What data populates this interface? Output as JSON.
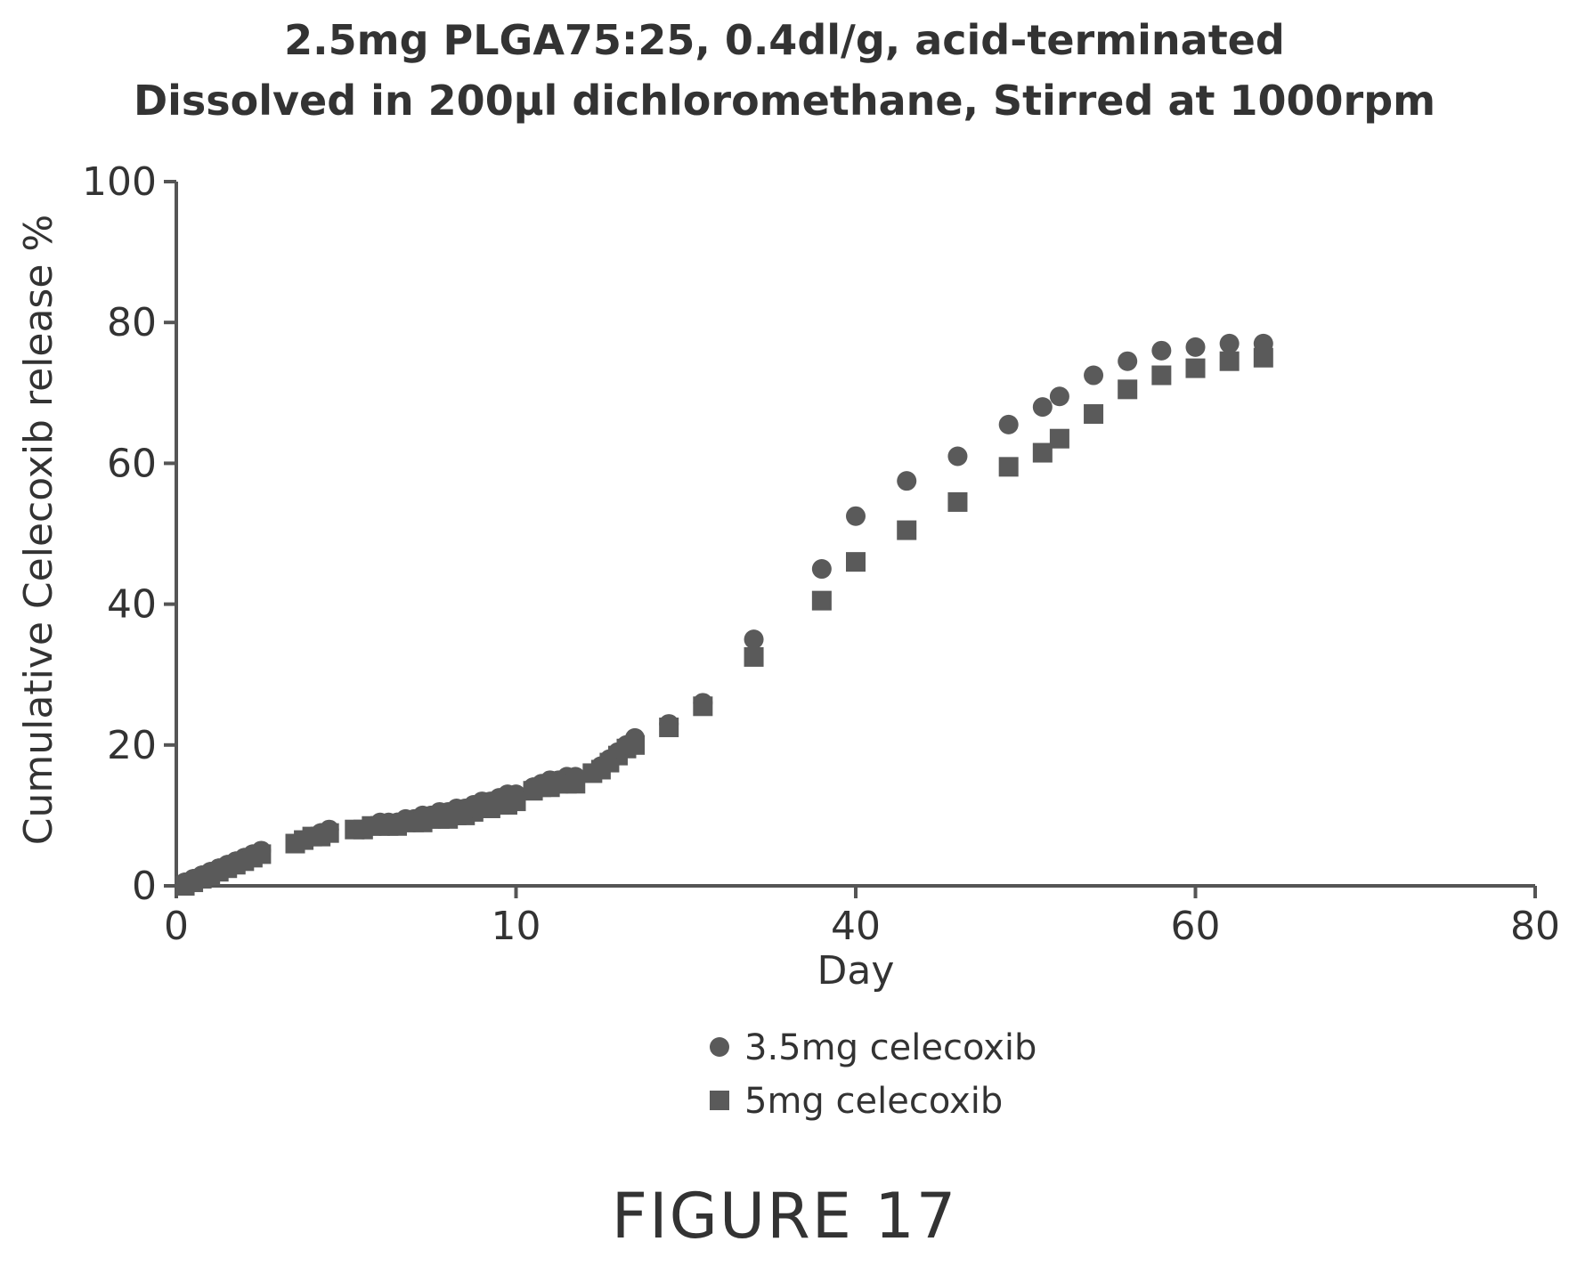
{
  "chart_data": {
    "type": "scatter",
    "title": "2.5mg PLGA75:25, 0.4dl/g, acid-terminated",
    "subtitle": "Dissolved in 200µl dichloromethane, Stirred at 1000rpm",
    "xlabel": "Day",
    "ylabel": "Cumulative Celecoxib release %",
    "xlim": [
      0,
      80
    ],
    "ylim": [
      0,
      100
    ],
    "xticks": [
      "0",
      "10",
      "40",
      "60",
      "80"
    ],
    "yticks": [
      "0",
      "20",
      "40",
      "60",
      "80",
      "100"
    ],
    "grid": false,
    "legend_position": "bottom",
    "series": [
      {
        "name": "3.5mg celecoxib",
        "marker": "circle",
        "color": "#5a5a5a",
        "points": [
          [
            0.5,
            0.5
          ],
          [
            1,
            1
          ],
          [
            1.5,
            1.5
          ],
          [
            2,
            2
          ],
          [
            2.5,
            2.5
          ],
          [
            3,
            3
          ],
          [
            3.5,
            3.5
          ],
          [
            4,
            4
          ],
          [
            4.5,
            4.5
          ],
          [
            5,
            5
          ],
          [
            7.5,
            6.5
          ],
          [
            8,
            7
          ],
          [
            8.5,
            7.5
          ],
          [
            9,
            8
          ],
          [
            11,
            8
          ],
          [
            11.5,
            8.5
          ],
          [
            12,
            9
          ],
          [
            12.5,
            9
          ],
          [
            13,
            9
          ],
          [
            13.5,
            9.5
          ],
          [
            14,
            9.5
          ],
          [
            14.5,
            10
          ],
          [
            15,
            10
          ],
          [
            15.5,
            10.5
          ],
          [
            16,
            10.5
          ],
          [
            16.5,
            11
          ],
          [
            17,
            11
          ],
          [
            17.5,
            11.5
          ],
          [
            18,
            12
          ],
          [
            18.5,
            12
          ],
          [
            19,
            12.5
          ],
          [
            19.5,
            13
          ],
          [
            20,
            13
          ],
          [
            21,
            14
          ],
          [
            21.5,
            14.5
          ],
          [
            22,
            15
          ],
          [
            22.5,
            15
          ],
          [
            23,
            15.5
          ],
          [
            23.5,
            15.5
          ],
          [
            25,
            17
          ],
          [
            25.5,
            18
          ],
          [
            26,
            19
          ],
          [
            26.5,
            20
          ],
          [
            27,
            21
          ],
          [
            29,
            23
          ],
          [
            31,
            26
          ],
          [
            34,
            35
          ],
          [
            38,
            45
          ],
          [
            40,
            52.5
          ],
          [
            43,
            57.5
          ],
          [
            46,
            61
          ],
          [
            49,
            65.5
          ],
          [
            51,
            68
          ],
          [
            52,
            69.5
          ],
          [
            54,
            72.5
          ],
          [
            56,
            74.5
          ],
          [
            58,
            76
          ],
          [
            60,
            76.5
          ],
          [
            62,
            77
          ],
          [
            64,
            77
          ]
        ]
      },
      {
        "name": "5mg celecoxib",
        "marker": "square",
        "color": "#5a5a5a",
        "points": [
          [
            0.5,
            0
          ],
          [
            1,
            0.5
          ],
          [
            1.5,
            1
          ],
          [
            2,
            1.5
          ],
          [
            2.5,
            2
          ],
          [
            3,
            2.5
          ],
          [
            3.5,
            3
          ],
          [
            4,
            3.5
          ],
          [
            4.5,
            4
          ],
          [
            5,
            4.5
          ],
          [
            7,
            6
          ],
          [
            7.5,
            6.5
          ],
          [
            8,
            7
          ],
          [
            8.5,
            7
          ],
          [
            9,
            7.5
          ],
          [
            10.5,
            8
          ],
          [
            11,
            8
          ],
          [
            11.5,
            8.5
          ],
          [
            12,
            8.5
          ],
          [
            12.5,
            8.5
          ],
          [
            13,
            8.5
          ],
          [
            13.5,
            9
          ],
          [
            14,
            9
          ],
          [
            14.5,
            9
          ],
          [
            15,
            9.5
          ],
          [
            15.5,
            9.5
          ],
          [
            16,
            9.5
          ],
          [
            16.5,
            10
          ],
          [
            17,
            10
          ],
          [
            17.5,
            10.5
          ],
          [
            18,
            11
          ],
          [
            18.5,
            11
          ],
          [
            19,
            11.5
          ],
          [
            19.5,
            11.5
          ],
          [
            20,
            12
          ],
          [
            21,
            13.5
          ],
          [
            21.5,
            14
          ],
          [
            22,
            14
          ],
          [
            22.5,
            14.5
          ],
          [
            23,
            14.5
          ],
          [
            23.5,
            14.5
          ],
          [
            24.5,
            16
          ],
          [
            25,
            16.5
          ],
          [
            25.5,
            17.5
          ],
          [
            26,
            18.5
          ],
          [
            26.5,
            19.5
          ],
          [
            27,
            20
          ],
          [
            29,
            22.5
          ],
          [
            31,
            25.5
          ],
          [
            34,
            32.5
          ],
          [
            38,
            40.5
          ],
          [
            40,
            46
          ],
          [
            43,
            50.5
          ],
          [
            46,
            54.5
          ],
          [
            49,
            59.5
          ],
          [
            51,
            61.5
          ],
          [
            52,
            63.5
          ],
          [
            54,
            67
          ],
          [
            56,
            70.5
          ],
          [
            58,
            72.5
          ],
          [
            60,
            73.5
          ],
          [
            62,
            74.5
          ],
          [
            64,
            75
          ]
        ]
      }
    ]
  },
  "figure_label": "FIGURE 17"
}
